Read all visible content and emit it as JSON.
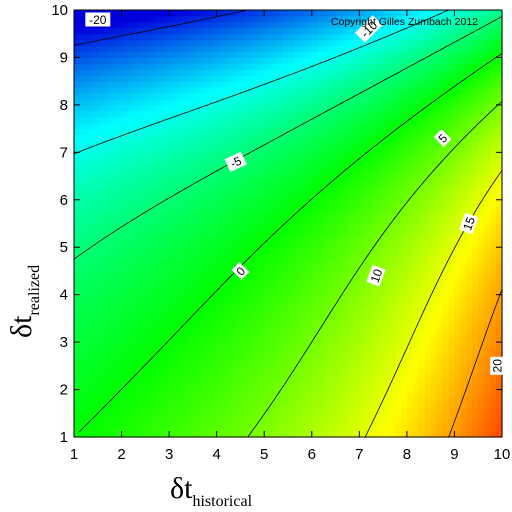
{
  "chart_data": {
    "type": "heatmap",
    "title": "",
    "xlabel": "δt",
    "xlabel_sub": "historical",
    "ylabel": "δt",
    "ylabel_sub": "realized",
    "xlim": [
      1,
      10
    ],
    "ylim": [
      1,
      10
    ],
    "x_ticks": [
      "1",
      "2",
      "3",
      "4",
      "5",
      "6",
      "7",
      "8",
      "9",
      "10"
    ],
    "y_ticks": [
      "1",
      "2",
      "3",
      "4",
      "5",
      "6",
      "7",
      "8",
      "9",
      "10"
    ],
    "annotation": "Copyright Gilles Zumbach 2012",
    "colormap": [
      "#0000dd",
      "#00ffff",
      "#00ff00",
      "#ffff00",
      "#ff0000"
    ],
    "value_range": [
      -22,
      22
    ],
    "contours": [
      {
        "level": -20,
        "label": "-20",
        "label_at": [
          1.5,
          9.8
        ]
      },
      {
        "level": -10,
        "label": "-10",
        "label_at": [
          7.2,
          9.6
        ]
      },
      {
        "level": -5,
        "label": "-5",
        "label_at": [
          4.4,
          6.8
        ]
      },
      {
        "level": 0,
        "label": "0",
        "label_at": [
          4.5,
          4.5
        ]
      },
      {
        "level": 5,
        "label": "5",
        "label_at": [
          8.75,
          7.3
        ]
      },
      {
        "level": 10,
        "label": "10",
        "label_at": [
          7.35,
          4.4
        ]
      },
      {
        "level": 15,
        "label": "15",
        "label_at": [
          9.3,
          5.5
        ]
      },
      {
        "level": 20,
        "label": "20",
        "label_at": [
          9.9,
          2.5
        ]
      }
    ]
  }
}
